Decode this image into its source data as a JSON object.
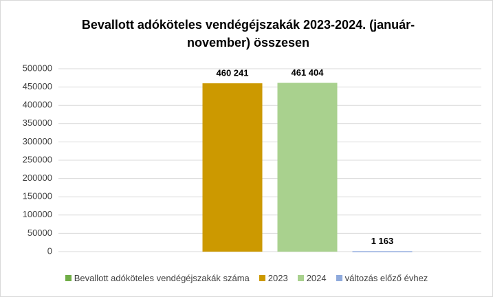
{
  "chart_data": {
    "type": "bar",
    "title": "Bevallott adóköteles vendégéjszakák 2023-2024. (január-november) összesen",
    "categories": [
      null
    ],
    "series": [
      {
        "name": "Bevallott adóköteles vendégéjszakák száma",
        "color": "#70ad47",
        "values": [
          null
        ],
        "value_labels": [
          null
        ]
      },
      {
        "name": "2023",
        "color": "#cc9900",
        "values": [
          460241
        ],
        "value_labels": [
          "460 241"
        ]
      },
      {
        "name": "2024",
        "color": "#a9d18e",
        "values": [
          461404
        ],
        "value_labels": [
          "461 404"
        ]
      },
      {
        "name": "változás előző évhez",
        "color": "#8faadc",
        "values": [
          1163
        ],
        "value_labels": [
          "1 163"
        ]
      }
    ],
    "ylim": [
      0,
      500000
    ],
    "yticks": [
      0,
      50000,
      100000,
      150000,
      200000,
      250000,
      300000,
      350000,
      400000,
      450000,
      500000
    ],
    "grid": true,
    "legend": "bottom"
  }
}
